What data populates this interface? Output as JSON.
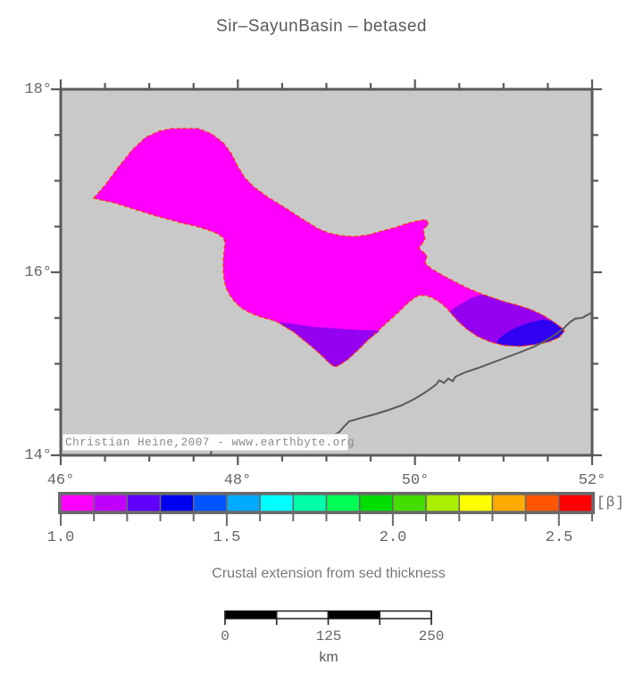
{
  "title": "Sir–SayunBasin – betased",
  "map": {
    "x_labels": [
      "46°",
      "48°",
      "50°",
      "52°"
    ],
    "y_labels": [
      "18°",
      "16°",
      "14°"
    ],
    "copyright": "Christian Heine,2007 - www.earthbyte.org",
    "background_color": "#c9c9c9",
    "frame_color": "#5a5a5a",
    "basin_color": "#ff00ff",
    "region_mid_color": "#9600f0",
    "region_high_color": "#3000f2",
    "outline_color": "#ff3c00",
    "coastline_color": "#5a5a5a"
  },
  "colorbar": {
    "unit": "[β]",
    "tick_labels": [
      "1.0",
      "1.5",
      "2.0",
      "2.5"
    ],
    "range_min": 1.0,
    "range_max": 2.6,
    "step": 0.1,
    "colors": [
      "#ff00ff",
      "#c000ff",
      "#6000ff",
      "#0000f0",
      "#0055ff",
      "#00aaff",
      "#00ffff",
      "#00ffaa",
      "#00ff55",
      "#00dd00",
      "#44dd00",
      "#aaee00",
      "#ffff00",
      "#ffaa00",
      "#ff5500",
      "#ff0000"
    ]
  },
  "caption": "Crustal extension from sed thickness",
  "scalebar": {
    "labels": [
      "0",
      "125",
      "250"
    ],
    "unit": "km"
  }
}
